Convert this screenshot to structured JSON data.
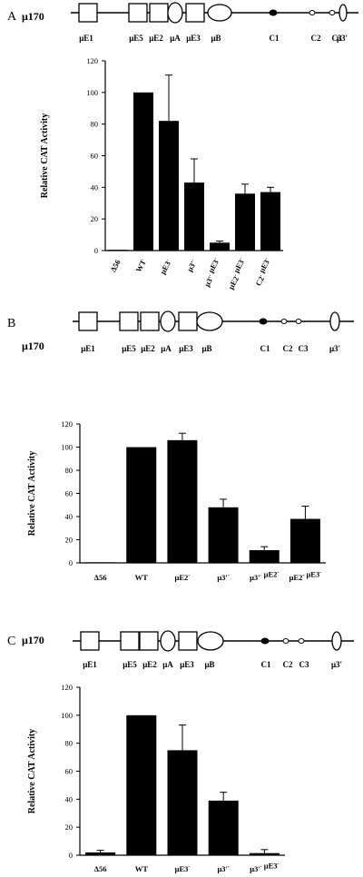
{
  "chart_data": [
    {
      "type": "bar",
      "panel_letter": "A",
      "construct": "μ170",
      "diagram_labels": [
        "μE1",
        "μE5",
        "μE2",
        "μA",
        "μE3",
        "μB",
        "C1",
        "C2",
        "C3",
        "μ3'"
      ],
      "ylabel": "Relative CAT Activity",
      "ylim": [
        0,
        120
      ],
      "yticks": [
        0,
        20,
        40,
        60,
        80,
        100,
        120
      ],
      "categories": [
        {
          "main": "Δ56"
        },
        {
          "main": "WT"
        },
        {
          "main": "μE3",
          "sup": "-"
        },
        {
          "main": "μ3'",
          "sup": "-"
        },
        {
          "main": "μ3'",
          "sup": "-",
          "main2": "μE3",
          "sup2": "-"
        },
        {
          "main": "μE2",
          "sup": "-",
          "main2": "μE3",
          "sup2": "-"
        },
        {
          "main": "C2",
          "sup": "-",
          "main2": "μE3",
          "sup2": "-"
        }
      ],
      "values": [
        0.5,
        100,
        82,
        43,
        5,
        36,
        37
      ],
      "errors": [
        0,
        0,
        29,
        15,
        1,
        6,
        3
      ]
    },
    {
      "type": "bar",
      "panel_letter": "B",
      "construct": "μ170",
      "diagram_labels": [
        "μE1",
        "μE5",
        "μE2",
        "μA",
        "μE3",
        "μB",
        "C1",
        "C2",
        "C3",
        "μ3'"
      ],
      "ylabel": "Relative CAT Activity",
      "ylim": [
        0,
        120
      ],
      "yticks": [
        0,
        20,
        40,
        60,
        80,
        100,
        120
      ],
      "categories": [
        {
          "main": "Δ56"
        },
        {
          "main": "WT"
        },
        {
          "main": "μE2",
          "sup": "-"
        },
        {
          "main": "μ3'",
          "sup": "-"
        },
        {
          "main": "μ3'",
          "sup": "-",
          "main2": "μE2",
          "sup2": "-"
        },
        {
          "main": "μE2",
          "sup": "-",
          "main2": "μE3",
          "sup2": "-"
        }
      ],
      "values": [
        0.5,
        100,
        106,
        48,
        11,
        38
      ],
      "errors": [
        0,
        0,
        6,
        7,
        3,
        11
      ]
    },
    {
      "type": "bar",
      "panel_letter": "C",
      "construct": "μ170",
      "diagram_labels": [
        "μE1",
        "μE5",
        "μE2",
        "μA",
        "μE3",
        "μB",
        "C1",
        "C2",
        "C3",
        "μ3'"
      ],
      "ylabel": "Relative CAT Activity",
      "ylim": [
        0,
        120
      ],
      "yticks": [
        0,
        20,
        40,
        60,
        80,
        100,
        120
      ],
      "categories": [
        {
          "main": "Δ56"
        },
        {
          "main": "WT"
        },
        {
          "main": "μE3",
          "sup": "-"
        },
        {
          "main": "μ3'",
          "sup": "-"
        },
        {
          "main": "μ3'",
          "sup": "-",
          "main2": "μE3",
          "sup2": "-"
        }
      ],
      "values": [
        2,
        100,
        75,
        39,
        1.5
      ],
      "errors": [
        1.5,
        0,
        18,
        6,
        2.5
      ]
    }
  ]
}
